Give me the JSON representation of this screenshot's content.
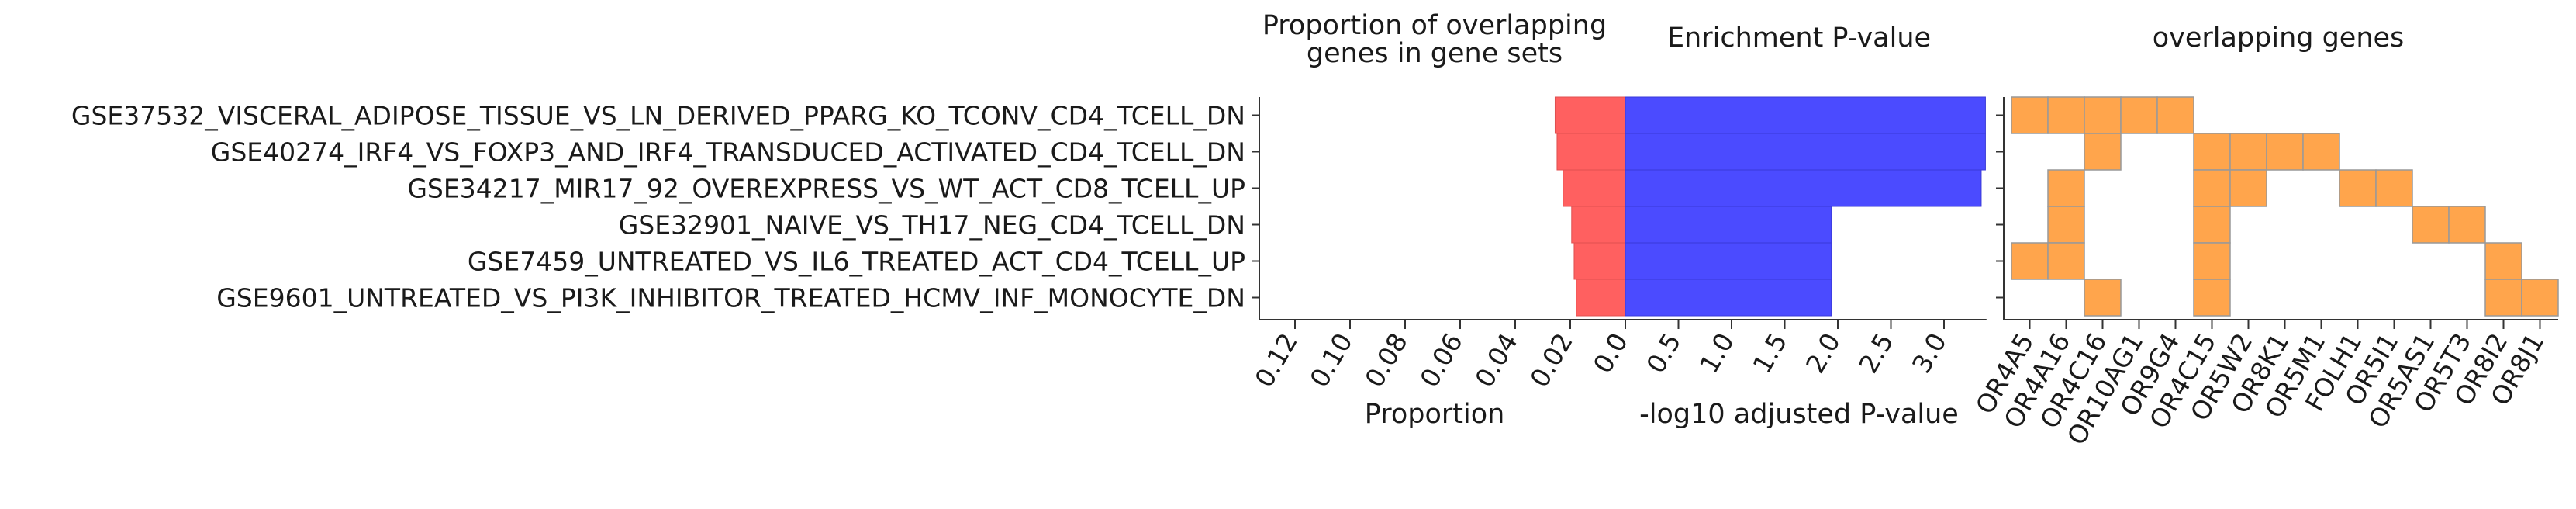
{
  "chart_data": [
    {
      "type": "bar",
      "orientation": "horizontal",
      "direction": "reversed",
      "title": "Proportion of overlapping\ngenes in gene sets",
      "xlabel": "Proportion",
      "xlim": [
        0.133,
        0
      ],
      "xticks": [
        "0.12",
        "0.10",
        "0.08",
        "0.06",
        "0.04",
        "0.02",
        "0.0"
      ],
      "color": "#ff6060",
      "categories": [
        "GSE37532_VISCERAL_ADIPOSE_TISSUE_VS_LN_DERIVED_PPARG_KO_TCONV_CD4_TCELL_DN",
        "GSE40274_IRF4_VS_FOXP3_AND_IRF4_TRANSDUCED_ACTIVATED_CD4_TCELL_DN",
        "GSE34217_MIR17_92_OVEREXPRESS_VS_WT_ACT_CD8_TCELL_UP",
        "GSE32901_NAIVE_VS_TH17_NEG_CD4_TCELL_DN",
        "GSE7459_UNTREATED_VS_IL6_TREATED_ACT_CD4_TCELL_UP",
        "GSE9601_UNTREATED_VS_PI3K_INHIBITOR_TREATED_HCMV_INF_MONOCYTE_DN"
      ],
      "values": [
        0.0255,
        0.0248,
        0.0226,
        0.0195,
        0.0186,
        0.0178
      ]
    },
    {
      "type": "bar",
      "orientation": "horizontal",
      "title": "Enrichment P-value",
      "xlabel": "-log10 adjusted P-value",
      "xlim": [
        0,
        3.4
      ],
      "xticks": [
        "0.0",
        "0.5",
        "1.0",
        "1.5",
        "2.0",
        "2.5",
        "3.0"
      ],
      "color": "#4b4bff",
      "categories": [
        "GSE37532_VISCERAL_ADIPOSE_TISSUE_VS_LN_DERIVED_PPARG_KO_TCONV_CD4_TCELL_DN",
        "GSE40274_IRF4_VS_FOXP3_AND_IRF4_TRANSDUCED_ACTIVATED_CD4_TCELL_DN",
        "GSE34217_MIR17_92_OVEREXPRESS_VS_WT_ACT_CD8_TCELL_UP",
        "GSE32901_NAIVE_VS_TH17_NEG_CD4_TCELL_DN",
        "GSE7459_UNTREATED_VS_IL6_TREATED_ACT_CD4_TCELL_UP",
        "GSE9601_UNTREATED_VS_PI3K_INHIBITOR_TREATED_HCMV_INF_MONOCYTE_DN"
      ],
      "values": [
        3.39,
        3.39,
        3.35,
        1.94,
        1.94,
        1.94
      ]
    },
    {
      "type": "heatmap",
      "title": "overlapping genes",
      "color": "#ffa54c",
      "genes": [
        "OR4A5",
        "OR4A16",
        "OR4C16",
        "OR10AG1",
        "OR9G4",
        "OR4C15",
        "OR5W2",
        "OR8K1",
        "OR5M1",
        "FOLH1",
        "OR5I1",
        "OR5AS1",
        "OR5T3",
        "OR8I2",
        "OR8J1"
      ],
      "rows": [
        "GSE37532_VISCERAL_ADIPOSE_TISSUE_VS_LN_DERIVED_PPARG_KO_TCONV_CD4_TCELL_DN",
        "GSE40274_IRF4_VS_FOXP3_AND_IRF4_TRANSDUCED_ACTIVATED_CD4_TCELL_DN",
        "GSE34217_MIR17_92_OVEREXPRESS_VS_WT_ACT_CD8_TCELL_UP",
        "GSE32901_NAIVE_VS_TH17_NEG_CD4_TCELL_DN",
        "GSE7459_UNTREATED_VS_IL6_TREATED_ACT_CD4_TCELL_UP",
        "GSE9601_UNTREATED_VS_PI3K_INHIBITOR_TREATED_HCMV_INF_MONOCYTE_DN"
      ],
      "matrix": [
        [
          1,
          1,
          1,
          1,
          1,
          0,
          0,
          0,
          0,
          0,
          0,
          0,
          0,
          0,
          0
        ],
        [
          0,
          0,
          1,
          0,
          0,
          1,
          1,
          1,
          1,
          0,
          0,
          0,
          0,
          0,
          0
        ],
        [
          0,
          1,
          0,
          0,
          0,
          1,
          1,
          0,
          0,
          1,
          1,
          0,
          0,
          0,
          0
        ],
        [
          0,
          1,
          0,
          0,
          0,
          1,
          0,
          0,
          0,
          0,
          0,
          1,
          1,
          0,
          0
        ],
        [
          1,
          1,
          0,
          0,
          0,
          1,
          0,
          0,
          0,
          0,
          0,
          0,
          0,
          1,
          0
        ],
        [
          0,
          0,
          1,
          0,
          0,
          1,
          0,
          0,
          0,
          0,
          0,
          0,
          0,
          1,
          1
        ]
      ]
    }
  ]
}
